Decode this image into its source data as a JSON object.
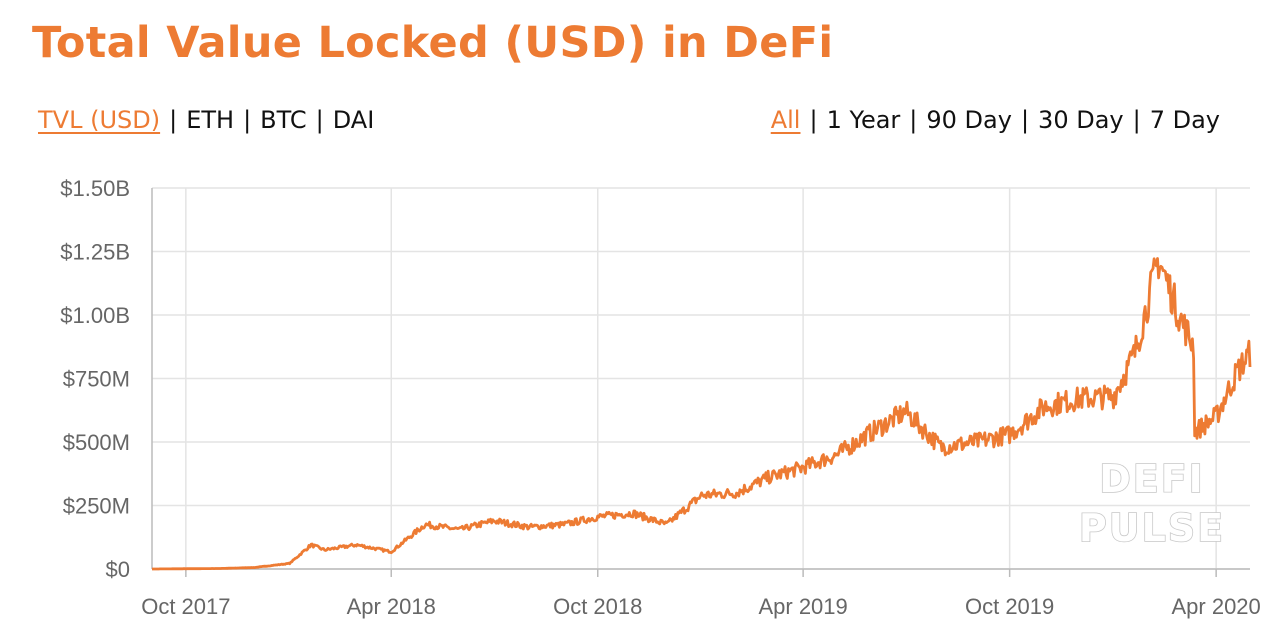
{
  "title": "Total Value Locked (USD) in DeFi",
  "metric_tabs": [
    {
      "label": "TVL (USD)",
      "active": true
    },
    {
      "label": "ETH",
      "active": false
    },
    {
      "label": "BTC",
      "active": false
    },
    {
      "label": "DAI",
      "active": false
    }
  ],
  "range_tabs": [
    {
      "label": "All",
      "active": true
    },
    {
      "label": "1 Year",
      "active": false
    },
    {
      "label": "90 Day",
      "active": false
    },
    {
      "label": "30 Day",
      "active": false
    },
    {
      "label": "7 Day",
      "active": false
    }
  ],
  "separator": "|",
  "watermark": [
    "DEFI",
    "PULSE"
  ],
  "colors": {
    "accent": "#ED7B33",
    "grid": "#e4e4e4",
    "tick_text": "#666666"
  },
  "chart_data": {
    "type": "line",
    "title": "Total Value Locked (USD) in DeFi",
    "xlabel": "",
    "ylabel": "",
    "x_range": [
      "2017-09-01",
      "2020-05-01"
    ],
    "ylim": [
      0,
      1500000000
    ],
    "grid": true,
    "y_ticks": [
      {
        "value": 0,
        "label": "$0"
      },
      {
        "value": 250000000,
        "label": "$250M"
      },
      {
        "value": 500000000,
        "label": "$500M"
      },
      {
        "value": 750000000,
        "label": "$750M"
      },
      {
        "value": 1000000000,
        "label": "$1.00B"
      },
      {
        "value": 1250000000,
        "label": "$1.25B"
      },
      {
        "value": 1500000000,
        "label": "$1.50B"
      }
    ],
    "x_ticks": [
      {
        "date": "2017-10-01",
        "label": "Oct 2017"
      },
      {
        "date": "2018-04-01",
        "label": "Apr 2018"
      },
      {
        "date": "2018-10-01",
        "label": "Oct 2018"
      },
      {
        "date": "2019-04-01",
        "label": "Apr 2019"
      },
      {
        "date": "2019-10-01",
        "label": "Oct 2019"
      },
      {
        "date": "2020-04-01",
        "label": "Apr 2020"
      }
    ],
    "series": [
      {
        "color": "#ED7B33",
        "points": [
          [
            "2017-09-01",
            0
          ],
          [
            "2017-10-01",
            1000000
          ],
          [
            "2017-11-01",
            2000000
          ],
          [
            "2017-12-01",
            6000000
          ],
          [
            "2018-01-01",
            22000000
          ],
          [
            "2018-01-20",
            95000000
          ],
          [
            "2018-02-01",
            75000000
          ],
          [
            "2018-03-01",
            95000000
          ],
          [
            "2018-04-01",
            68000000
          ],
          [
            "2018-05-01",
            175000000
          ],
          [
            "2018-06-01",
            155000000
          ],
          [
            "2018-07-01",
            190000000
          ],
          [
            "2018-08-01",
            165000000
          ],
          [
            "2018-09-01",
            175000000
          ],
          [
            "2018-10-01",
            205000000
          ],
          [
            "2018-11-01",
            220000000
          ],
          [
            "2018-12-01",
            175000000
          ],
          [
            "2019-01-01",
            290000000
          ],
          [
            "2019-02-01",
            300000000
          ],
          [
            "2019-03-01",
            360000000
          ],
          [
            "2019-04-01",
            400000000
          ],
          [
            "2019-05-01",
            450000000
          ],
          [
            "2019-06-01",
            540000000
          ],
          [
            "2019-07-01",
            620000000
          ],
          [
            "2019-08-01",
            480000000
          ],
          [
            "2019-09-01",
            500000000
          ],
          [
            "2019-10-01",
            530000000
          ],
          [
            "2019-11-01",
            640000000
          ],
          [
            "2019-12-01",
            670000000
          ],
          [
            "2020-01-01",
            680000000
          ],
          [
            "2020-01-20",
            850000000
          ],
          [
            "2020-02-10",
            1220000000
          ],
          [
            "2020-03-01",
            980000000
          ],
          [
            "2020-03-12",
            880000000
          ],
          [
            "2020-03-13",
            540000000
          ],
          [
            "2020-04-01",
            600000000
          ],
          [
            "2020-04-20",
            780000000
          ],
          [
            "2020-05-01",
            850000000
          ]
        ]
      }
    ]
  }
}
